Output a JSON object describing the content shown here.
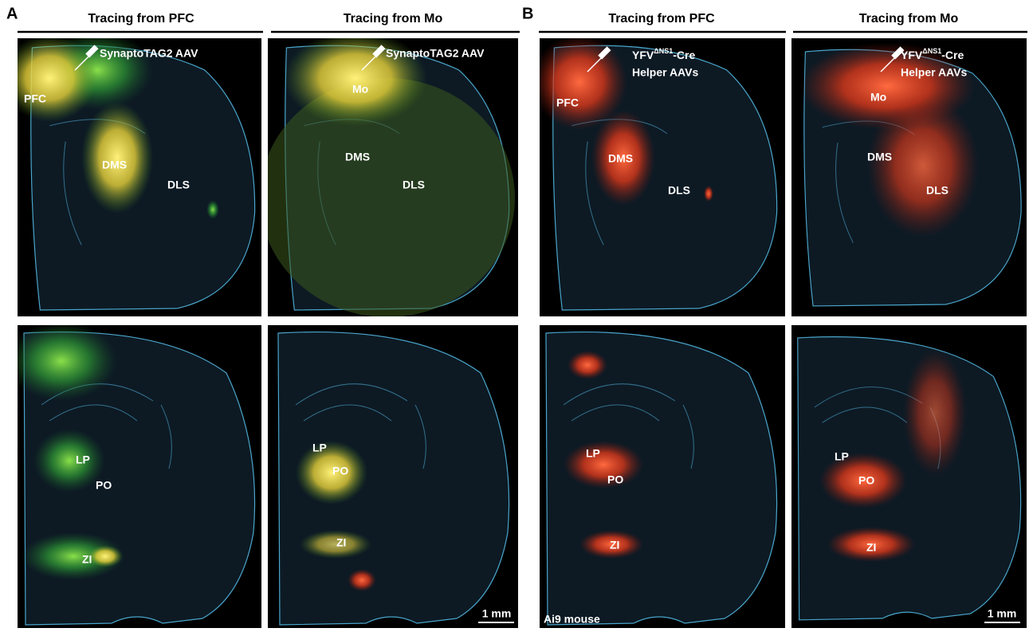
{
  "panels": [
    {
      "letter": "A",
      "columns": [
        {
          "header": "Tracing from PFC",
          "vector": "SynaptoTAG2 AAV",
          "top_labels": [
            "PFC",
            "DMS",
            "DLS"
          ],
          "bottom_labels": [
            "LP",
            "PO",
            "ZI"
          ]
        },
        {
          "header": "Tracing from Mo",
          "vector": "SynaptoTAG2 AAV",
          "top_labels": [
            "Mo",
            "DMS",
            "DLS"
          ],
          "bottom_labels": [
            "LP",
            "PO",
            "ZI"
          ],
          "scale_bar": "1 mm"
        }
      ]
    },
    {
      "letter": "B",
      "columns": [
        {
          "header": "Tracing from PFC",
          "construct": {
            "name": "YFV",
            "sup": "ΔNS1",
            "suffix": "-Cre",
            "line2": "Helper AAVs"
          },
          "top_labels": [
            "PFC",
            "DMS",
            "DLS"
          ],
          "bottom_labels": [
            "LP",
            "PO",
            "ZI"
          ],
          "note": "Ai9 mouse"
        },
        {
          "header": "Tracing from Mo",
          "construct": {
            "name": "YFV",
            "sup": "ΔNS1",
            "suffix": "-Cre",
            "line2": "Helper AAVs"
          },
          "top_labels": [
            "Mo",
            "DMS",
            "DLS"
          ],
          "bottom_labels": [
            "LP",
            "PO",
            "ZI"
          ],
          "scale_bar": "1 mm"
        }
      ]
    }
  ]
}
